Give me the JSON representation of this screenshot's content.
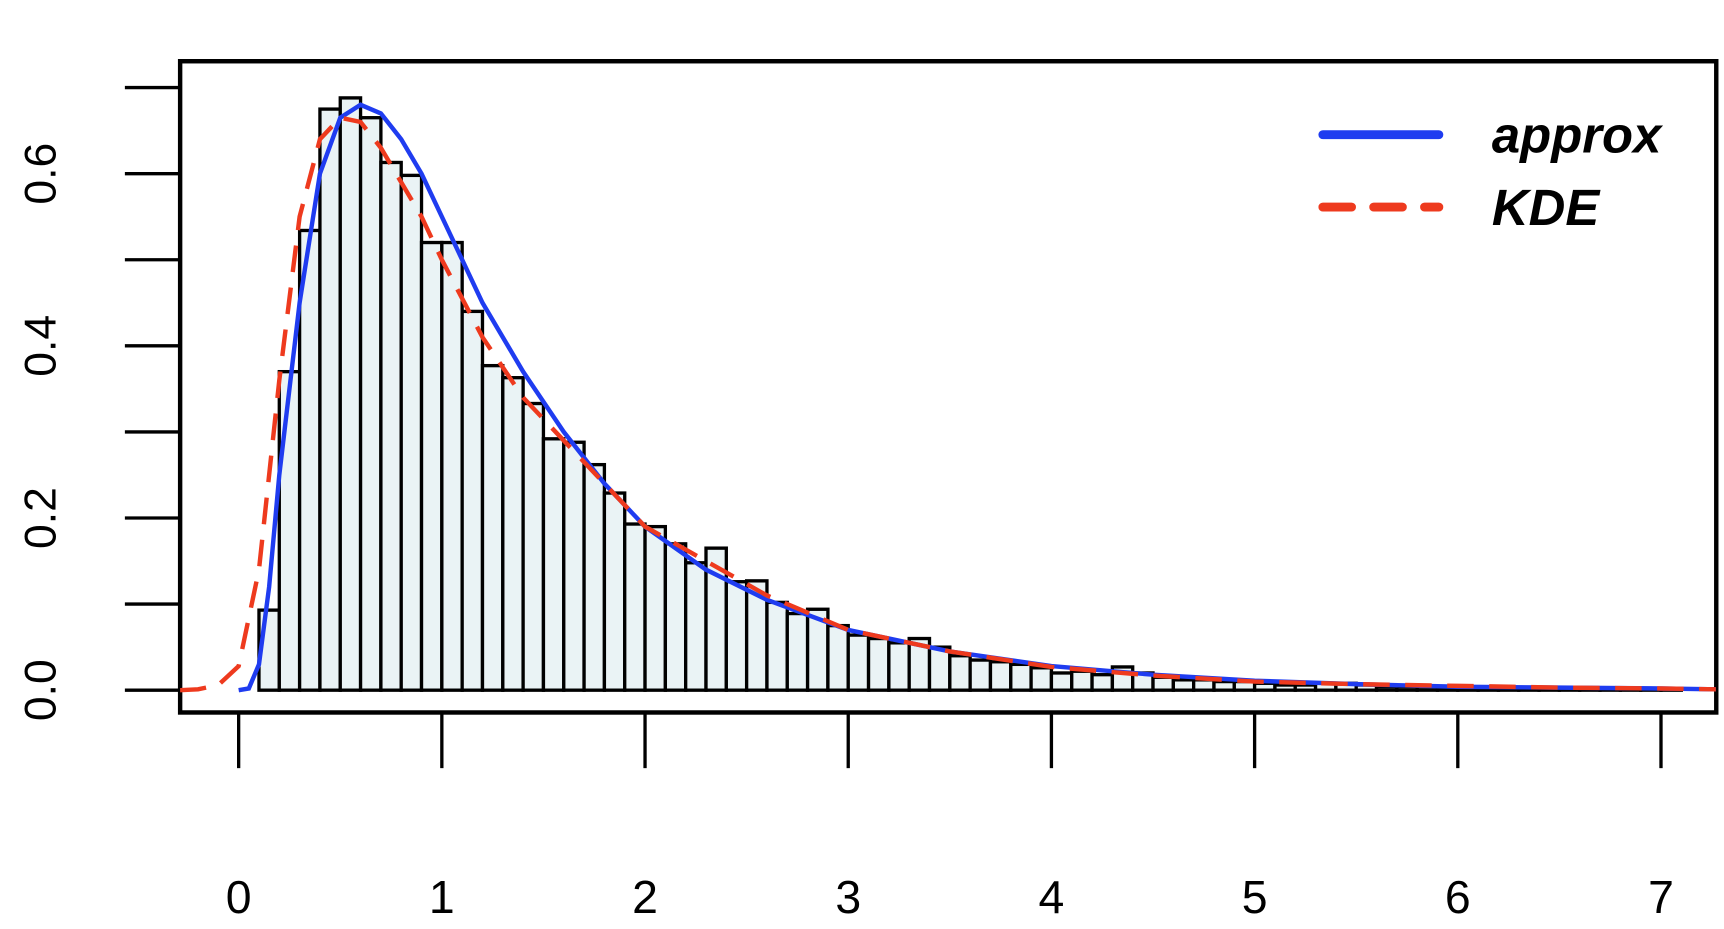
{
  "chart_data": {
    "type": "histogram",
    "bins": [
      0,
      0.1,
      0.2,
      0.3,
      0.4,
      0.5,
      0.6,
      0.7,
      0.8,
      0.9,
      1,
      1.1,
      1.2,
      1.3,
      1.4,
      1.5,
      1.6,
      1.7,
      1.8,
      1.9,
      2,
      2.1,
      2.2,
      2.3,
      2.4,
      2.5,
      2.6,
      2.7,
      2.8,
      2.9,
      3,
      3.1,
      3.2,
      3.3,
      3.4,
      3.5,
      3.6,
      3.7,
      3.8,
      3.9,
      4,
      4.1,
      4.2,
      4.3,
      4.4,
      4.5,
      4.6,
      4.7,
      4.8,
      4.9,
      5,
      5.1,
      5.2,
      5.3,
      5.4,
      5.5,
      5.6,
      5.7,
      5.8,
      5.9,
      6,
      6.1,
      6.2,
      6.3,
      6.4,
      6.5,
      6.6,
      6.7,
      6.8,
      6.9,
      7,
      7.1
    ],
    "values": [
      0,
      0.093,
      0.37,
      0.534,
      0.675,
      0.688,
      0.665,
      0.613,
      0.598,
      0.52,
      0.52,
      0.44,
      0.377,
      0.363,
      0.333,
      0.292,
      0.288,
      0.262,
      0.229,
      0.193,
      0.19,
      0.17,
      0.148,
      0.165,
      0.126,
      0.127,
      0.102,
      0.089,
      0.094,
      0.075,
      0.064,
      0.06,
      0.055,
      0.06,
      0.05,
      0.04,
      0.035,
      0.033,
      0.03,
      0.026,
      0.02,
      0.022,
      0.018,
      0.027,
      0.02,
      0.015,
      0.012,
      0.012,
      0.01,
      0.01,
      0.008,
      0.006,
      0.006,
      0.008,
      0.008,
      0.006,
      0.004,
      0.004,
      0.004,
      0.003,
      0.003,
      0.002,
      0.002,
      0.002,
      0.001,
      0.002,
      0.001,
      0.002,
      0.001,
      0.001,
      0.002
    ],
    "color": "#eaf3f5",
    "lines": [
      {
        "name": "approx",
        "color": "#1f3cf0",
        "dash": false,
        "x": [
          0,
          0.05,
          0.1,
          0.15,
          0.2,
          0.3,
          0.4,
          0.5,
          0.6,
          0.7,
          0.8,
          0.9,
          1,
          1.2,
          1.4,
          1.6,
          1.8,
          2,
          2.3,
          2.6,
          3,
          3.5,
          4,
          4.5,
          5,
          5.5,
          6,
          6.5,
          7,
          7.27
        ],
        "values": [
          0,
          0.002,
          0.03,
          0.12,
          0.25,
          0.45,
          0.6,
          0.665,
          0.68,
          0.67,
          0.64,
          0.6,
          0.55,
          0.45,
          0.37,
          0.3,
          0.24,
          0.19,
          0.14,
          0.105,
          0.07,
          0.045,
          0.028,
          0.018,
          0.011,
          0.007,
          0.004,
          0.003,
          0.002,
          0.001
        ]
      },
      {
        "name": "KDE",
        "color": "#ee3a1e",
        "dash": true,
        "x": [
          -0.29,
          -0.2,
          -0.1,
          0,
          0.1,
          0.2,
          0.3,
          0.4,
          0.5,
          0.6,
          0.7,
          0.8,
          0.9,
          1,
          1.2,
          1.4,
          1.6,
          1.8,
          2,
          2.3,
          2.6,
          3,
          3.5,
          4,
          4.5,
          5,
          5.5,
          6,
          6.5,
          7,
          7.27
        ],
        "values": [
          0,
          0.001,
          0.006,
          0.028,
          0.14,
          0.36,
          0.55,
          0.64,
          0.665,
          0.66,
          0.63,
          0.59,
          0.55,
          0.5,
          0.41,
          0.34,
          0.29,
          0.24,
          0.19,
          0.15,
          0.11,
          0.07,
          0.045,
          0.027,
          0.017,
          0.01,
          0.007,
          0.005,
          0.003,
          0.002,
          0.001
        ]
      }
    ],
    "xlim": [
      -0.288,
      7.272
    ],
    "ylim": [
      -0.0259,
      0.7306
    ],
    "xticks": [
      0,
      1,
      2,
      3,
      4,
      5,
      6,
      7
    ],
    "yticks": [
      {
        "value": 0,
        "label": "0.0"
      },
      {
        "value": 0.2,
        "label": "0.2"
      },
      {
        "value": 0.4,
        "label": "0.4"
      },
      {
        "value": 0.6,
        "label": "0.6"
      }
    ],
    "yminor_ticks": [
      0.1,
      0.3,
      0.5,
      0.7
    ],
    "legend": "top-right"
  }
}
